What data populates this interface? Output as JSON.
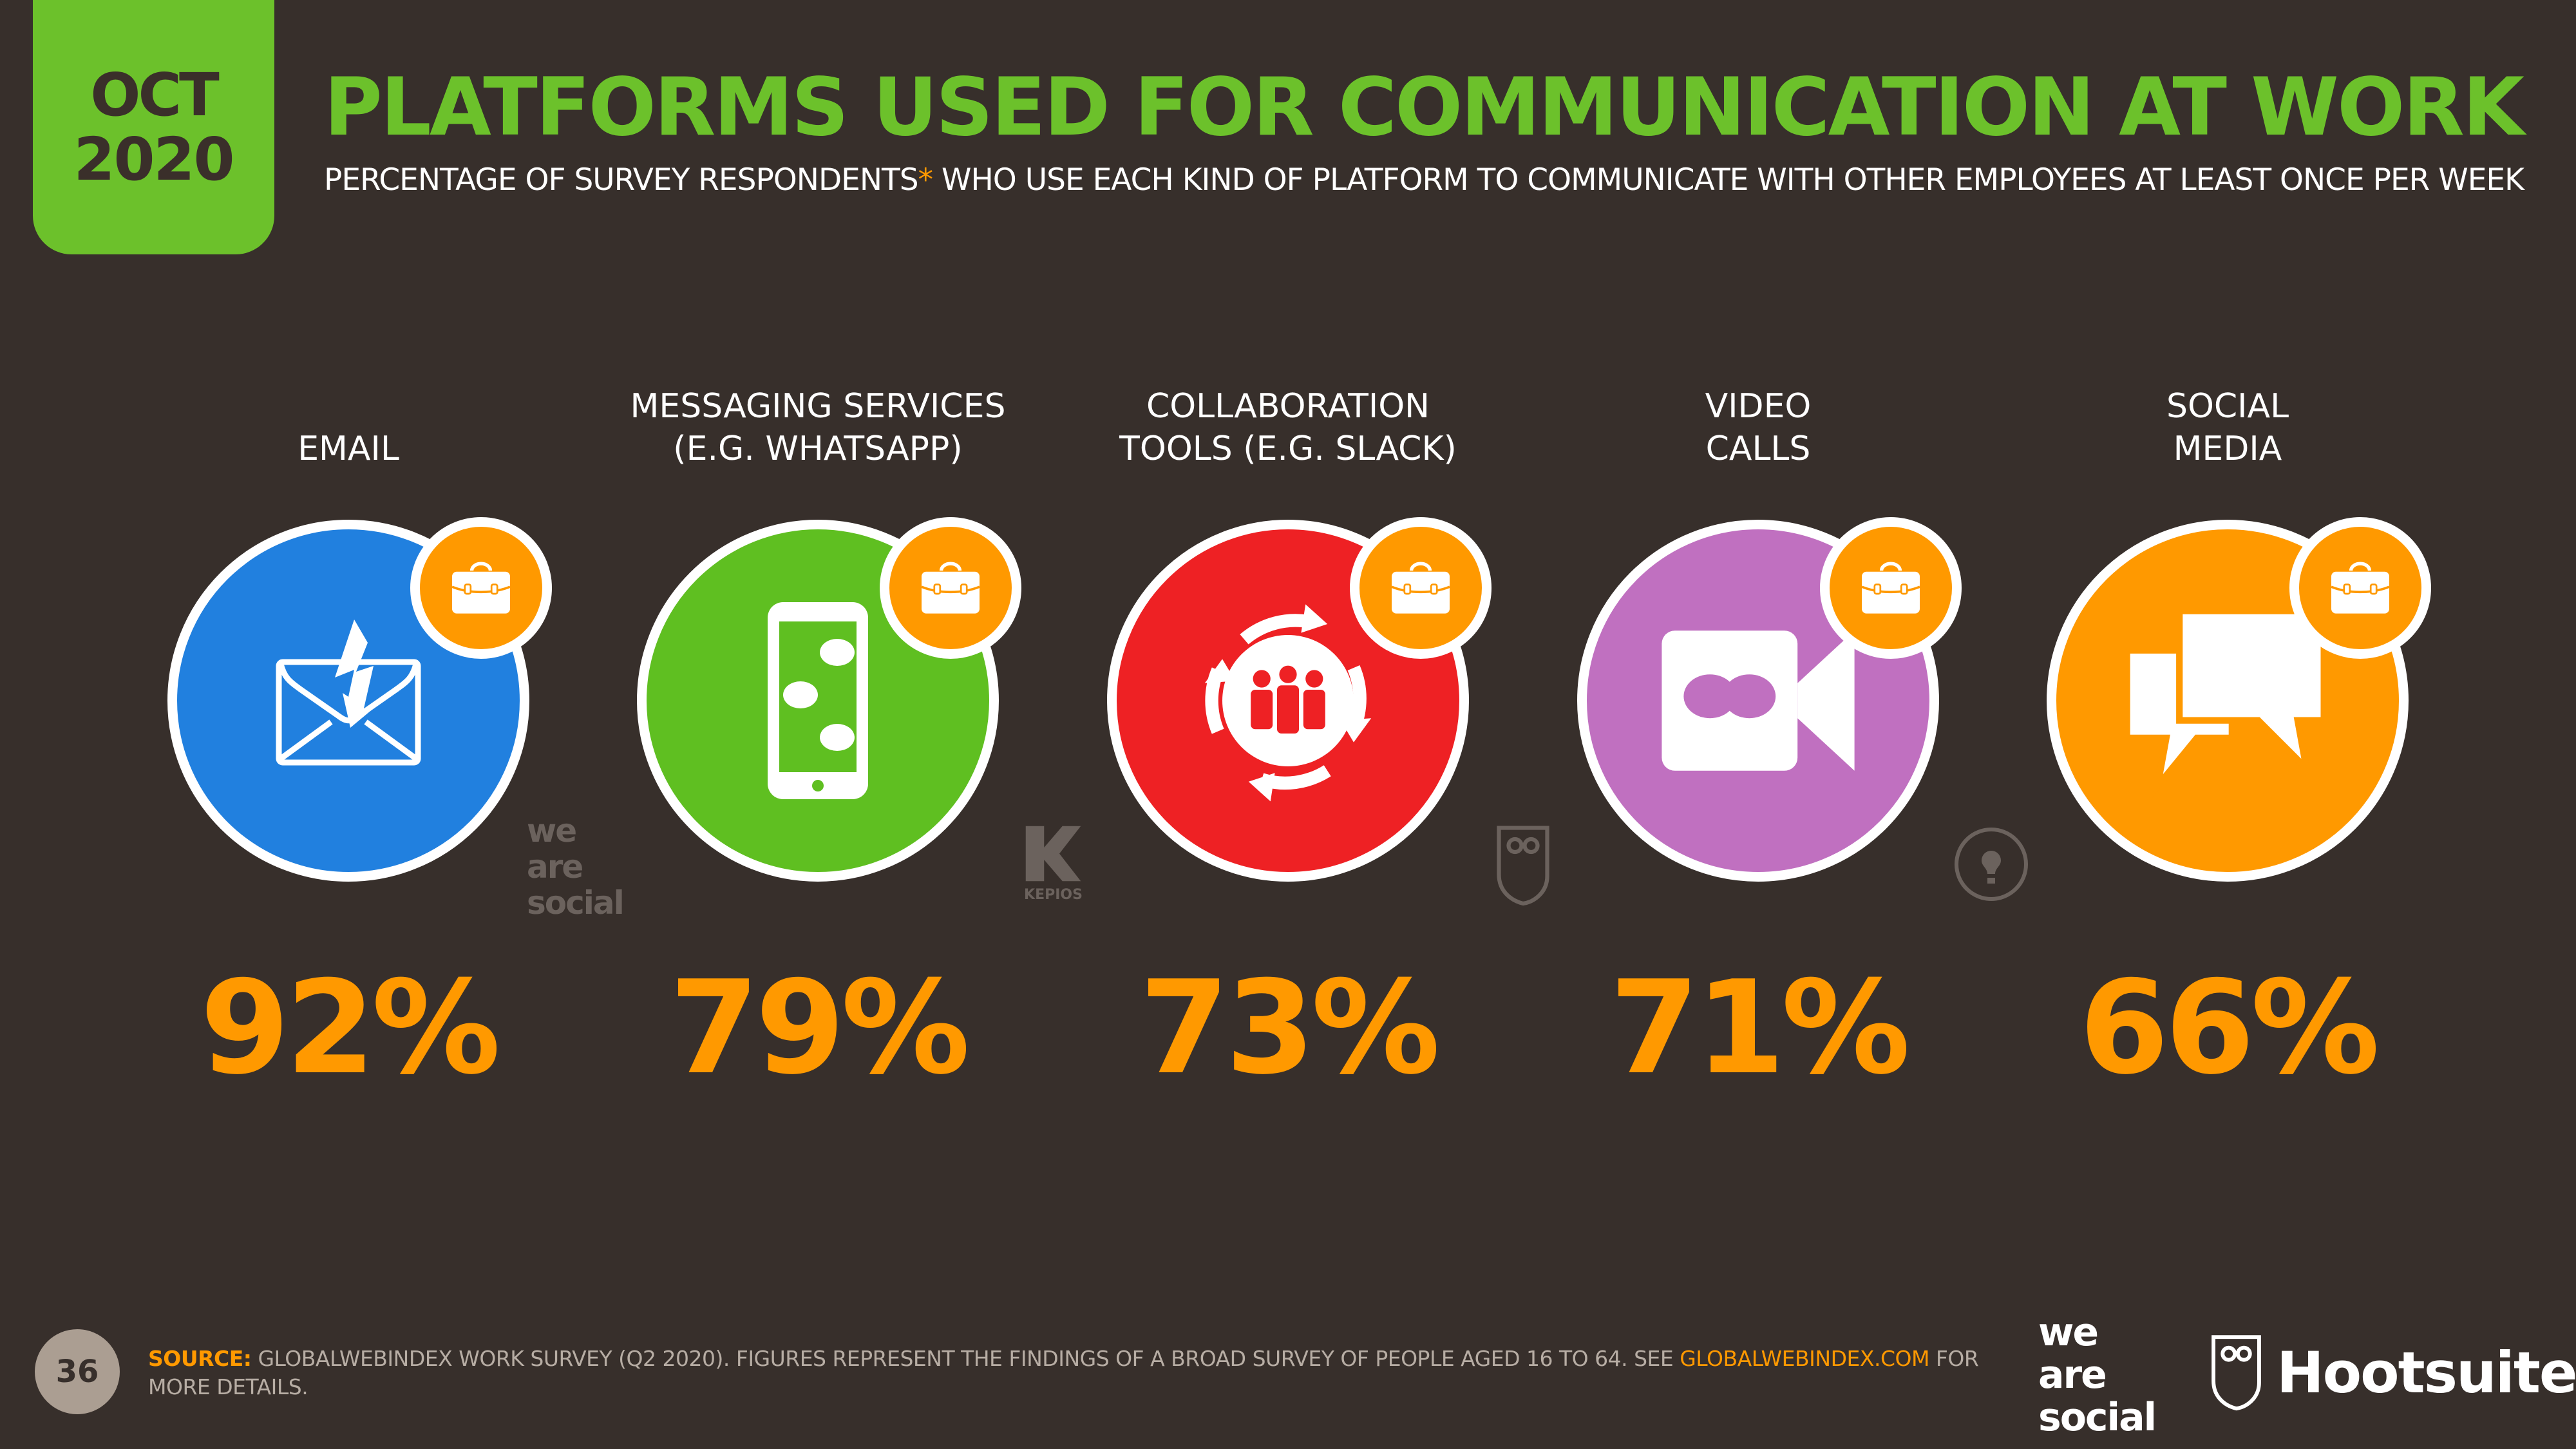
{
  "date": {
    "month": "OCT",
    "year": "2020"
  },
  "title": "PLATFORMS USED FOR COMMUNICATION AT WORK",
  "subtitle": {
    "before": "PERCENTAGE OF SURVEY RESPONDENTS",
    "asterisk": "*",
    "after": " WHO USE EACH KIND OF PLATFORM TO COMMUNICATE WITH OTHER EMPLOYEES AT LEAST ONCE PER WEEK"
  },
  "platforms": [
    {
      "line1": "",
      "line2": "EMAIL",
      "value": "92%",
      "color": "#2180df",
      "icon": "envelope-lightning-icon"
    },
    {
      "line1": "MESSAGING SERVICES",
      "line2": "(E.G. WHATSAPP)",
      "value": "79%",
      "color": "#5fbf21",
      "icon": "smartphone-chat-icon"
    },
    {
      "line1": "COLLABORATION",
      "line2": "TOOLS (E.G. SLACK)",
      "value": "73%",
      "color": "#ee2124",
      "icon": "team-cycle-icon"
    },
    {
      "line1": "VIDEO",
      "line2": "CALLS",
      "value": "71%",
      "color": "#c070c0",
      "icon": "video-camera-icon"
    },
    {
      "line1": "SOCIAL",
      "line2": "MEDIA",
      "value": "66%",
      "color": "#ff9900",
      "icon": "speech-bubbles-icon"
    }
  ],
  "badge_icon": "briefcase-icon",
  "watermarks": {
    "wearesocial": "we are social",
    "kepios": "KEPIOS"
  },
  "footer": {
    "page": "36",
    "source_label": "SOURCE:",
    "source_text": " GLOBALWEBINDEX WORK SURVEY (Q2 2020). FIGURES REPRESENT THE FINDINGS OF A BROAD SURVEY OF PEOPLE AGED 16 TO 64. SEE ",
    "source_link": "GLOBALWEBINDEX.COM",
    "source_end": " FOR MORE DETAILS.",
    "logo1": [
      "we",
      "are",
      "social"
    ],
    "logo2": "Hootsuite"
  },
  "colors": {
    "background": "#372f2b",
    "accent_green": "#6cc12b",
    "accent_orange": "#ff9900"
  }
}
